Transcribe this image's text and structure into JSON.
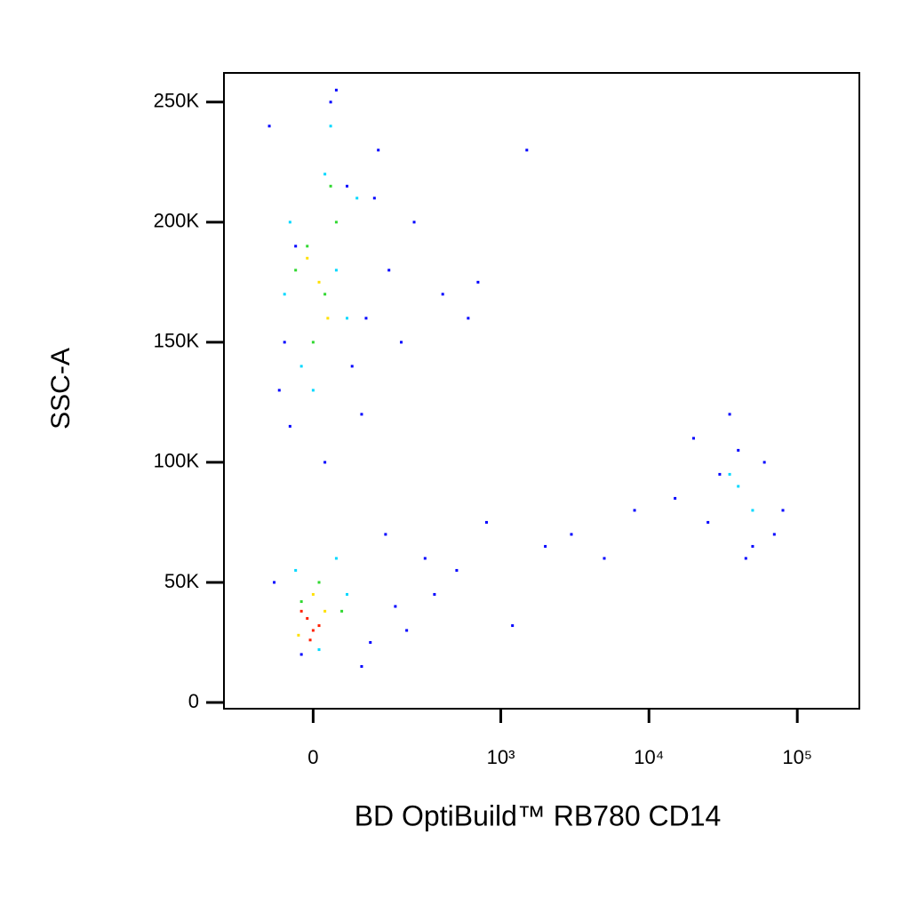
{
  "chart_data": {
    "type": "scatter",
    "x_label": "BD OptiBuild™ RB780 CD14",
    "y_label": "SSC-A",
    "xscale": {
      "type": "asinh",
      "width": 109
    },
    "xlim": [
      -204,
      262000
    ],
    "xticks": [
      0,
      {
        "value": 1000,
        "label": "10³"
      },
      {
        "value": 10000,
        "label": "10⁴"
      },
      {
        "value": 100000,
        "label": "10⁵"
      }
    ],
    "ylim": [
      -2600,
      262144
    ],
    "yticks": [
      0,
      {
        "value": 50000,
        "label": "50K"
      },
      {
        "value": 100000,
        "label": "100K"
      },
      {
        "value": 150000,
        "label": "150K"
      },
      {
        "value": 200000,
        "label": "200K"
      },
      {
        "value": 250000,
        "label": "250K"
      }
    ],
    "series": [
      {
        "color": "#0000ff",
        "x": [
          -80,
          -60,
          120,
          160,
          200,
          40,
          -40,
          90,
          250,
          400,
          600,
          1500,
          800,
          3000,
          300,
          180,
          -50,
          70,
          130,
          20,
          -70,
          110,
          500,
          2000,
          700,
          20000,
          60000,
          25000,
          35000,
          50000,
          80000,
          30000,
          15000,
          70000,
          45000,
          40000,
          5000,
          8000,
          150,
          -30,
          60,
          100,
          -20,
          90,
          220,
          350,
          1200,
          30
        ],
        "y": [
          240000,
          130000,
          210000,
          180000,
          150000,
          255000,
          115000,
          120000,
          200000,
          170000,
          160000,
          230000,
          75000,
          70000,
          60000,
          40000,
          150000,
          140000,
          230000,
          100000,
          50000,
          25000,
          55000,
          65000,
          175000,
          110000,
          100000,
          75000,
          120000,
          65000,
          80000,
          95000,
          85000,
          70000,
          60000,
          105000,
          60000,
          80000,
          70000,
          190000,
          215000,
          160000,
          20000,
          15000,
          30000,
          45000,
          32000,
          250000
        ]
      },
      {
        "color": "#00d8ff",
        "x": [
          -40,
          20,
          60,
          -20,
          40,
          80,
          0,
          -50,
          30,
          40000,
          50000,
          35000,
          -30,
          40,
          10,
          60
        ],
        "y": [
          200000,
          220000,
          160000,
          140000,
          180000,
          210000,
          130000,
          170000,
          240000,
          90000,
          80000,
          95000,
          55000,
          60000,
          22000,
          45000
        ]
      },
      {
        "color": "#30d830",
        "x": [
          -10,
          20,
          40,
          0,
          30,
          -30,
          10,
          -20,
          50
        ],
        "y": [
          190000,
          170000,
          200000,
          150000,
          215000,
          180000,
          50000,
          42000,
          38000
        ]
      },
      {
        "color": "#ffe000",
        "x": [
          10,
          -10,
          25,
          0,
          20,
          -25
        ],
        "y": [
          175000,
          185000,
          160000,
          45000,
          38000,
          28000
        ]
      },
      {
        "color": "#ff2000",
        "x": [
          -10,
          0,
          -20,
          10,
          -5
        ],
        "y": [
          35000,
          30000,
          38000,
          32000,
          26000
        ]
      }
    ]
  }
}
